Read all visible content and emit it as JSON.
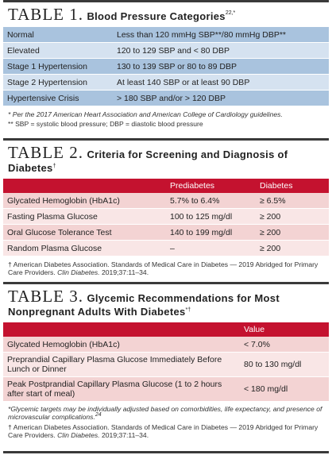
{
  "table1": {
    "label": "TABLE 1.",
    "title": "Blood Pressure Categories",
    "title_sup": "22,*",
    "rows": [
      [
        "Normal",
        "Less than 120 mmHg SBP**/80 mmHg DBP**"
      ],
      [
        "Elevated",
        "120 to 129 SBP and < 80 DBP"
      ],
      [
        "Stage 1 Hypertension",
        "130 to 139 SBP or 80 to 89 DBP"
      ],
      [
        "Stage 2 Hypertension",
        "At least 140 SBP or at least 90 DBP"
      ],
      [
        "Hypertensive Crisis",
        "> 180 SBP and/or > 120 DBP"
      ]
    ],
    "footnotes": [
      "* Per the 2017 American Heart Association and American College of Cardiology guidelines.",
      "** SBP = systolic blood pressure; DBP = diastolic blood pressure"
    ]
  },
  "table2": {
    "label": "TABLE 2.",
    "title": "Criteria for Screening and Diagnosis of Diabetes",
    "title_sup": "†",
    "columns": [
      "Prediabetes",
      "Diabetes"
    ],
    "rows": [
      [
        "Glycated Hemoglobin (HbA1c)",
        "5.7% to 6.4%",
        "≥ 6.5%"
      ],
      [
        "Fasting Plasma Glucose",
        "100 to 125 mg/dl",
        "≥ 200"
      ],
      [
        "Oral Glucose Tolerance Test",
        "140 to 199 mg/dl",
        "≥ 200"
      ],
      [
        "Random Plasma Glucose",
        "–",
        "≥ 200"
      ]
    ],
    "reference": {
      "before": "† American Diabetes Association. Standards of Medical Care in Diabetes — 2019 Abridged for Primary Care Providers. ",
      "journal": "Clin Diabetes.",
      "after": " 2019;37:11–34."
    }
  },
  "table3": {
    "label": "TABLE 3.",
    "title": "Glycemic Recommendations for Most Nonpregnant Adults With Diabetes",
    "title_sup": "*†",
    "columns": [
      "Value"
    ],
    "rows": [
      [
        "Glycated Hemoglobin (HbA1c)",
        "< 7.0%"
      ],
      [
        "Preprandial Capillary Plasma Glucose Immediately Before Lunch or Dinner",
        "80 to 130 mg/dl"
      ],
      [
        "Peak Postprandial Capillary Plasma Glucose (1 to 2 hours after start of meal)",
        "< 180 mg/dl"
      ]
    ],
    "footnote": {
      "text": "*Glycemic targets may be individually adjusted based on comorbidities, life expectancy, and presence of microvascular complications.",
      "sup": "24"
    },
    "reference": {
      "before": "† American Diabetes Association. Standards of Medical Care in Diabetes — 2019 Abridged for Primary Care Providers. ",
      "journal": "Clin Diabetes.",
      "after": " 2019;37:11–34."
    }
  }
}
